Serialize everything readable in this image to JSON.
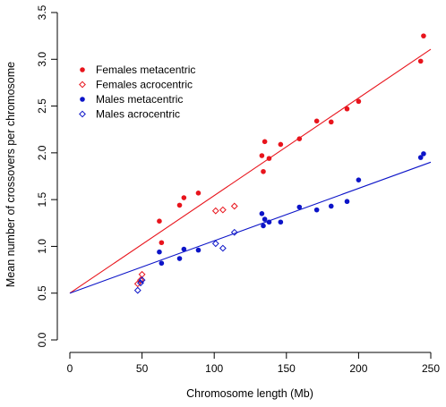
{
  "chart_data": {
    "type": "scatter",
    "xlabel": "Chromosome length (Mb)",
    "ylabel": "Mean number of crossovers per chromosome",
    "xlim": [
      0,
      250
    ],
    "ylim": [
      0,
      3.5
    ],
    "xticks": [
      0,
      50,
      100,
      150,
      200,
      250
    ],
    "yticks": [
      0.0,
      0.5,
      1.0,
      1.5,
      2.0,
      2.5,
      3.0,
      3.5
    ],
    "xtick_labels": [
      "0",
      "50",
      "100",
      "150",
      "200",
      "250"
    ],
    "ytick_labels": [
      "0.0",
      "0.5",
      "1.0",
      "1.5",
      "2.0",
      "2.5",
      "3.0",
      "3.5"
    ],
    "grid": false,
    "legend_position": "top-left",
    "series": [
      {
        "name": "Females metacentric",
        "color": "#e8141c",
        "marker": "filled-circle",
        "points": [
          [
            62,
            1.27
          ],
          [
            63.5,
            1.04
          ],
          [
            76,
            1.44
          ],
          [
            79,
            1.52
          ],
          [
            89,
            1.57
          ],
          [
            133,
            1.97
          ],
          [
            134,
            1.8
          ],
          [
            135,
            2.12
          ],
          [
            138,
            1.94
          ],
          [
            146,
            2.09
          ],
          [
            159,
            2.15
          ],
          [
            171,
            2.34
          ],
          [
            181,
            2.33
          ],
          [
            192,
            2.47
          ],
          [
            200,
            2.55
          ],
          [
            243,
            2.98
          ],
          [
            245,
            3.25
          ]
        ]
      },
      {
        "name": "Females acrocentric",
        "color": "#e8141c",
        "marker": "open-diamond",
        "points": [
          [
            47,
            0.6
          ],
          [
            49,
            0.64
          ],
          [
            50,
            0.7
          ],
          [
            101,
            1.38
          ],
          [
            106,
            1.39
          ],
          [
            114,
            1.43
          ]
        ]
      },
      {
        "name": "Males metacentric",
        "color": "#0c14c8",
        "marker": "filled-circle",
        "points": [
          [
            62,
            0.94
          ],
          [
            63.5,
            0.82
          ],
          [
            76,
            0.87
          ],
          [
            79,
            0.97
          ],
          [
            89,
            0.96
          ],
          [
            133,
            1.35
          ],
          [
            134,
            1.22
          ],
          [
            135,
            1.29
          ],
          [
            138,
            1.26
          ],
          [
            146,
            1.26
          ],
          [
            159,
            1.42
          ],
          [
            171,
            1.39
          ],
          [
            181,
            1.43
          ],
          [
            192,
            1.48
          ],
          [
            200,
            1.71
          ],
          [
            243,
            1.95
          ],
          [
            245,
            1.99
          ]
        ]
      },
      {
        "name": "Males acrocentric",
        "color": "#0c14c8",
        "marker": "open-diamond",
        "points": [
          [
            47,
            0.53
          ],
          [
            49,
            0.61
          ],
          [
            50,
            0.64
          ],
          [
            101,
            1.03
          ],
          [
            106,
            0.98
          ],
          [
            114,
            1.15
          ]
        ]
      }
    ],
    "lines": [
      {
        "color": "#e8141c",
        "intercept": 0.5,
        "slope": 0.01043
      },
      {
        "color": "#0c14c8",
        "intercept": 0.5,
        "slope": 0.0056
      }
    ]
  }
}
